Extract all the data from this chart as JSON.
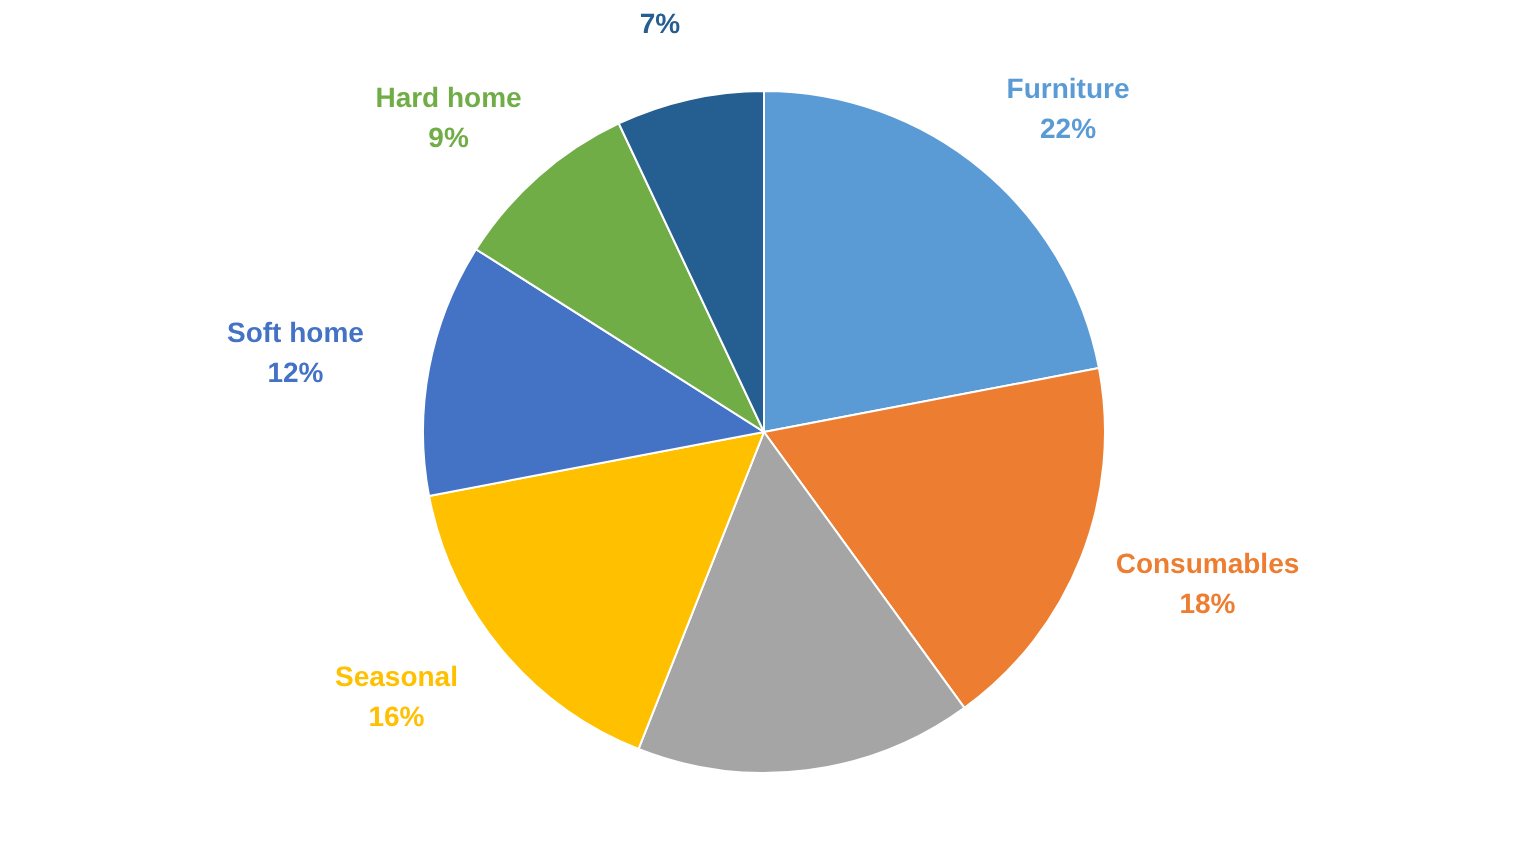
{
  "chart_data": {
    "type": "pie",
    "categories": [
      "Furniture",
      "Consumables",
      null,
      "Seasonal",
      "Soft home",
      "Hard home",
      null
    ],
    "values": [
      22,
      18,
      16,
      16,
      12,
      9,
      7
    ],
    "value_labels": [
      "22%",
      "18%",
      null,
      "16%",
      "12%",
      "9%",
      "7%"
    ],
    "colors": [
      "#5b9bd5",
      "#ed7d31",
      "#a5a5a5",
      "#ffc000",
      "#4472c4",
      "#70ad47",
      "#255e91"
    ],
    "legend": false
  }
}
